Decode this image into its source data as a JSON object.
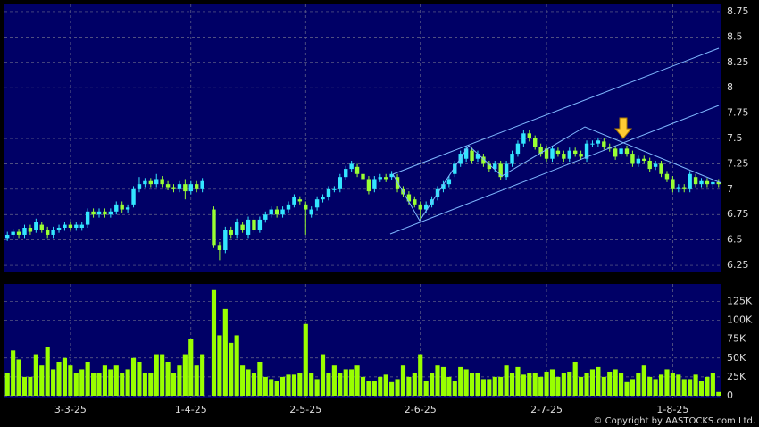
{
  "chart_data": {
    "type": "candlestick",
    "categories": [
      null,
      null,
      null,
      null,
      null,
      null,
      null,
      null,
      null,
      null,
      null,
      "3-3-25",
      null,
      null,
      null,
      null,
      null,
      null,
      null,
      null,
      null,
      null,
      null,
      null,
      null,
      null,
      null,
      null,
      null,
      null,
      null,
      null,
      "1-4-25",
      null,
      null,
      null,
      null,
      null,
      null,
      null,
      null,
      null,
      null,
      null,
      null,
      null,
      null,
      null,
      null,
      null,
      null,
      null,
      "2-5-25",
      null,
      null,
      null,
      null,
      null,
      null,
      null,
      null,
      null,
      null,
      null,
      null,
      null,
      null,
      null,
      null,
      null,
      null,
      null,
      "2-6-25",
      null,
      null,
      null,
      null,
      null,
      null,
      null,
      null,
      null,
      null,
      null,
      null,
      null,
      null,
      null,
      null,
      null,
      null,
      null,
      null,
      null,
      "2-7-25",
      null,
      null,
      null,
      null,
      null,
      null,
      null,
      null,
      null,
      null,
      null,
      null,
      null,
      null,
      null,
      null,
      null,
      null,
      null,
      null,
      null,
      "1-8-25",
      null,
      null,
      null,
      null,
      null,
      null,
      null,
      null
    ],
    "open": [
      6.52,
      6.55,
      6.58,
      6.55,
      6.62,
      6.6,
      6.65,
      6.6,
      6.55,
      6.6,
      6.62,
      6.65,
      6.62,
      6.62,
      6.65,
      6.78,
      6.75,
      6.78,
      6.75,
      6.78,
      6.85,
      6.8,
      6.85,
      7.0,
      7.05,
      7.08,
      7.05,
      7.1,
      7.05,
      7.02,
      7.0,
      7.05,
      6.98,
      7.05,
      7.0,
      null,
      6.8,
      6.45,
      6.4,
      6.6,
      6.55,
      6.65,
      6.55,
      6.7,
      6.6,
      6.7,
      6.75,
      6.8,
      6.75,
      6.8,
      6.85,
      6.9,
      6.85,
      6.75,
      6.82,
      6.9,
      6.92,
      7.0,
      7.0,
      7.12,
      7.2,
      7.22,
      7.15,
      7.1,
      7.0,
      7.1,
      7.12,
      7.12,
      7.12,
      7.0,
      6.95,
      6.9,
      6.85,
      6.8,
      6.85,
      6.92,
      7.0,
      7.05,
      7.15,
      7.25,
      7.3,
      7.38,
      7.3,
      7.32,
      7.25,
      7.2,
      7.25,
      7.12,
      7.25,
      7.35,
      7.45,
      7.55,
      7.5,
      7.42,
      7.4,
      7.3,
      7.38,
      7.35,
      7.3,
      7.38,
      7.35,
      7.3,
      7.45,
      7.45,
      7.47,
      7.42,
      7.4,
      7.35,
      7.4,
      7.35,
      7.25,
      7.3,
      7.28,
      7.22,
      7.25,
      7.15,
      7.1,
      7.0,
      7.02,
      7.0,
      7.12,
      7.05,
      7.08,
      7.05,
      7.07
    ],
    "high": [
      6.58,
      6.61,
      6.61,
      6.65,
      6.65,
      6.71,
      6.68,
      6.63,
      6.63,
      6.65,
      6.68,
      6.68,
      6.68,
      6.68,
      6.81,
      6.81,
      6.81,
      6.81,
      6.81,
      6.88,
      6.88,
      6.85,
      7.03,
      7.12,
      7.11,
      7.11,
      7.15,
      7.13,
      7.08,
      7.05,
      7.08,
      7.1,
      7.08,
      7.08,
      7.11,
      null,
      6.83,
      6.48,
      6.63,
      6.63,
      6.71,
      6.68,
      6.73,
      6.73,
      6.73,
      6.78,
      6.83,
      6.83,
      6.83,
      6.88,
      6.95,
      6.93,
      6.88,
      6.83,
      6.93,
      6.95,
      7.03,
      7.03,
      7.15,
      7.23,
      7.28,
      7.25,
      7.18,
      7.13,
      7.13,
      7.15,
      7.15,
      7.18,
      7.15,
      7.03,
      6.98,
      6.93,
      6.88,
      6.88,
      6.93,
      7.03,
      7.08,
      7.13,
      7.28,
      7.38,
      7.43,
      7.41,
      7.38,
      7.35,
      7.28,
      7.28,
      7.28,
      7.28,
      7.38,
      7.48,
      7.58,
      7.58,
      7.53,
      7.45,
      7.43,
      7.43,
      7.41,
      7.38,
      7.41,
      7.41,
      7.38,
      7.48,
      7.48,
      7.51,
      7.5,
      7.45,
      7.43,
      7.43,
      7.43,
      7.38,
      7.33,
      7.33,
      7.31,
      7.28,
      7.28,
      7.18,
      7.13,
      7.05,
      7.05,
      7.18,
      7.15,
      7.11,
      7.11,
      7.1,
      7.1
    ],
    "low": [
      6.49,
      6.52,
      6.52,
      6.52,
      6.55,
      6.57,
      6.57,
      6.52,
      6.52,
      6.57,
      6.59,
      6.59,
      6.59,
      6.59,
      6.62,
      6.72,
      6.72,
      6.72,
      6.72,
      6.75,
      6.77,
      6.77,
      6.82,
      6.97,
      7.02,
      7.02,
      7.02,
      7.02,
      6.99,
      6.97,
      6.97,
      6.9,
      6.95,
      6.97,
      6.97,
      null,
      6.42,
      6.3,
      6.37,
      6.52,
      6.52,
      6.57,
      6.52,
      6.57,
      6.57,
      6.67,
      6.72,
      6.72,
      6.72,
      6.77,
      6.82,
      6.85,
      6.55,
      6.72,
      6.79,
      6.87,
      6.89,
      6.97,
      6.97,
      7.09,
      7.17,
      7.12,
      7.07,
      6.95,
      6.97,
      7.07,
      7.07,
      7.09,
      6.97,
      6.92,
      6.85,
      6.82,
      6.7,
      6.77,
      6.82,
      6.89,
      6.97,
      7.02,
      7.12,
      7.22,
      7.27,
      7.25,
      7.27,
      7.22,
      7.17,
      7.17,
      7.09,
      7.09,
      7.22,
      7.32,
      7.42,
      7.47,
      7.39,
      7.32,
      7.27,
      7.27,
      7.32,
      7.27,
      7.27,
      7.32,
      7.29,
      7.27,
      7.42,
      7.42,
      7.39,
      7.37,
      7.29,
      7.32,
      7.32,
      7.22,
      7.22,
      7.25,
      7.17,
      7.19,
      7.12,
      7.07,
      6.97,
      6.97,
      6.97,
      6.97,
      7.02,
      7.02,
      7.02,
      7.02,
      7.02
    ],
    "close": [
      6.55,
      6.58,
      6.55,
      6.62,
      6.58,
      6.68,
      6.6,
      6.55,
      6.6,
      6.62,
      6.65,
      6.62,
      6.65,
      6.65,
      6.78,
      6.75,
      6.78,
      6.75,
      6.78,
      6.85,
      6.8,
      6.82,
      7.0,
      7.05,
      7.08,
      7.05,
      7.1,
      7.05,
      7.02,
      7.0,
      7.05,
      6.98,
      7.05,
      7.0,
      7.08,
      null,
      6.45,
      6.4,
      6.6,
      6.55,
      6.68,
      6.6,
      6.7,
      6.6,
      6.7,
      6.75,
      6.8,
      6.75,
      6.8,
      6.85,
      6.92,
      6.88,
      6.8,
      6.8,
      6.9,
      6.92,
      7.0,
      7.0,
      7.12,
      7.2,
      7.25,
      7.15,
      7.1,
      6.98,
      7.1,
      7.12,
      7.1,
      7.15,
      7.0,
      6.95,
      6.88,
      6.85,
      6.8,
      6.85,
      6.9,
      7.0,
      7.05,
      7.1,
      7.25,
      7.35,
      7.4,
      7.28,
      7.35,
      7.25,
      7.2,
      7.25,
      7.12,
      7.25,
      7.35,
      7.45,
      7.55,
      7.5,
      7.42,
      7.35,
      7.3,
      7.4,
      7.35,
      7.3,
      7.38,
      7.35,
      7.32,
      7.45,
      7.45,
      7.48,
      7.42,
      7.4,
      7.32,
      7.4,
      7.35,
      7.25,
      7.3,
      7.28,
      7.2,
      7.25,
      7.15,
      7.1,
      7.0,
      7.02,
      7.0,
      7.15,
      7.05,
      7.08,
      7.05,
      7.07,
      7.05
    ],
    "up_color": "#33e6ff",
    "down_color": "#99ff33",
    "ylim": [
      6.18,
      8.82
    ],
    "yticks": [
      6.25,
      6.5,
      6.75,
      7,
      7.25,
      7.5,
      7.75,
      8,
      8.25,
      8.5,
      8.75
    ],
    "grid": true,
    "volume": {
      "color": "#99ff00",
      "ylim": [
        0,
        148000
      ],
      "yticks": [
        0,
        {
          "value": 25000,
          "label": "25K"
        },
        {
          "value": 50000,
          "label": "50K"
        },
        {
          "value": 75000,
          "label": "75K"
        },
        {
          "value": 100000,
          "label": "100K"
        },
        {
          "value": 125000,
          "label": "125K"
        }
      ],
      "values": [
        30000,
        60000,
        48000,
        25000,
        25000,
        55000,
        40000,
        65000,
        35000,
        45000,
        50000,
        40000,
        30000,
        35000,
        45000,
        30000,
        30000,
        40000,
        35000,
        40000,
        30000,
        35000,
        50000,
        45000,
        30000,
        30000,
        55000,
        55000,
        45000,
        30000,
        40000,
        55000,
        75000,
        40000,
        55000,
        null,
        140000,
        80000,
        115000,
        70000,
        80000,
        40000,
        35000,
        30000,
        45000,
        25000,
        22000,
        20000,
        25000,
        28000,
        28000,
        30000,
        95000,
        30000,
        22000,
        55000,
        30000,
        40000,
        30000,
        35000,
        35000,
        40000,
        25000,
        20000,
        20000,
        25000,
        28000,
        18000,
        22000,
        40000,
        25000,
        30000,
        55000,
        20000,
        30000,
        40000,
        38000,
        25000,
        20000,
        38000,
        35000,
        30000,
        30000,
        22000,
        22000,
        25000,
        25000,
        40000,
        30000,
        38000,
        28000,
        30000,
        30000,
        25000,
        32000,
        35000,
        25000,
        30000,
        32000,
        45000,
        25000,
        30000,
        35000,
        38000,
        25000,
        32000,
        35000,
        30000,
        18000,
        22000,
        30000,
        40000,
        25000,
        22000,
        28000,
        35000,
        30000,
        28000,
        22000,
        22000,
        28000,
        20000,
        25000,
        30000,
        5000
      ]
    },
    "source": "© Copyright by AASTOCKS.com Ltd."
  }
}
